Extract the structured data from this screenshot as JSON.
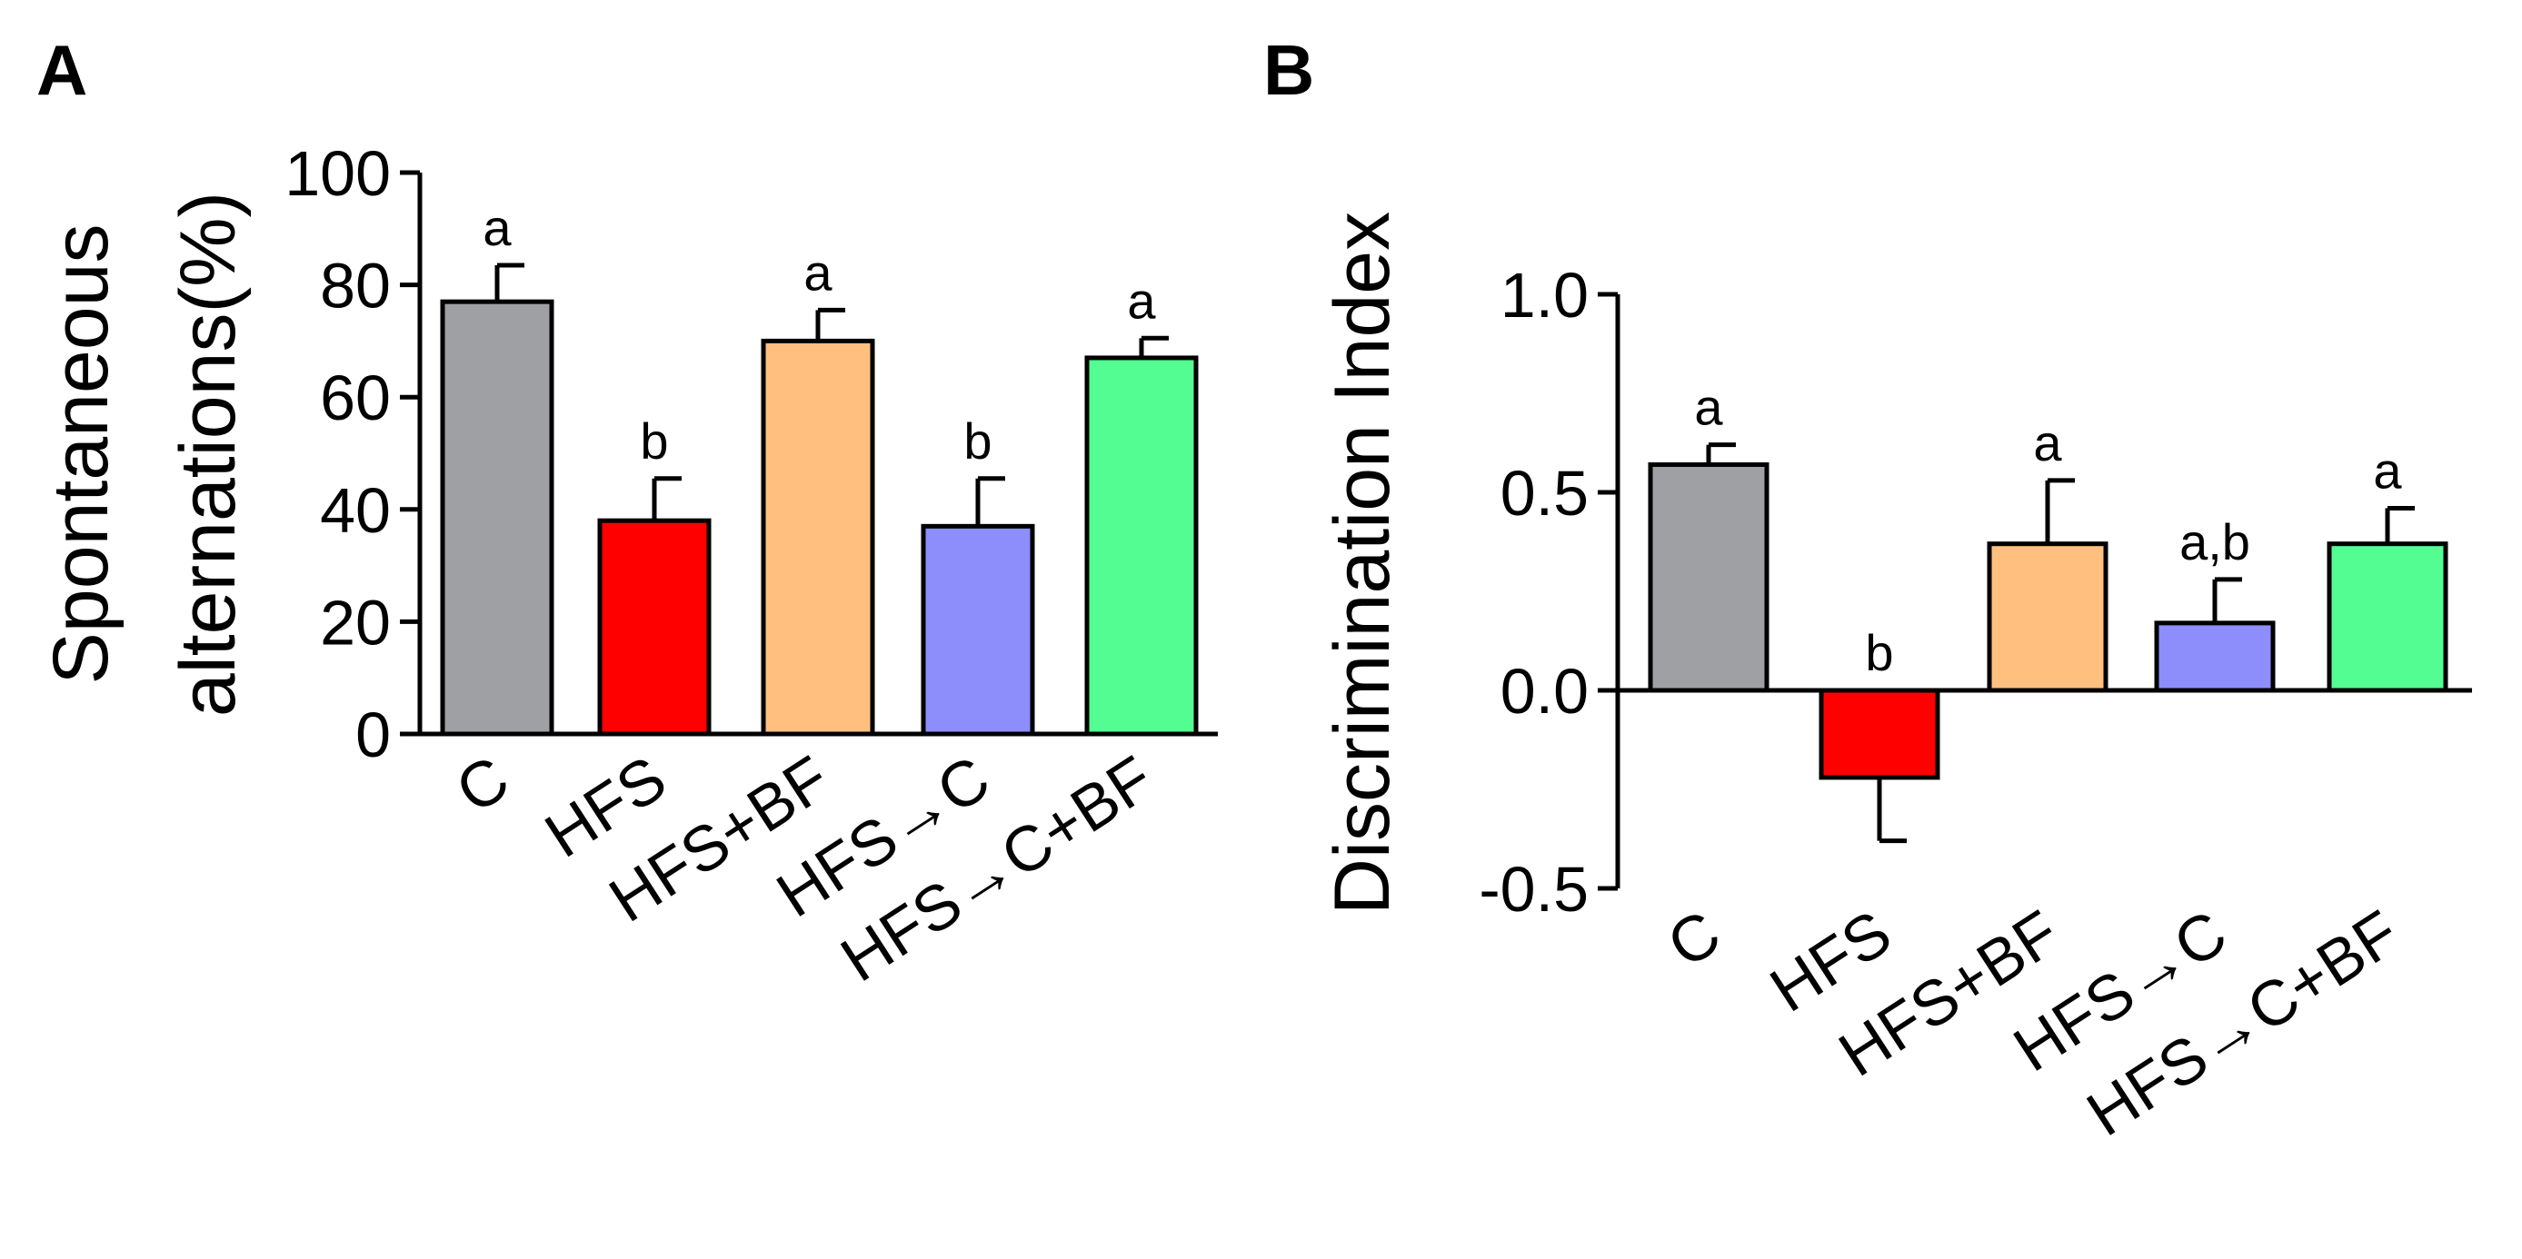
{
  "chart_data": [
    {
      "panel": "A",
      "type": "bar",
      "ylabel": [
        "Spontaneous",
        "alternations(%)"
      ],
      "ylim": [
        0,
        100
      ],
      "yticks": [
        0,
        20,
        40,
        60,
        80,
        100
      ],
      "categories": [
        "C",
        "HFS",
        "HFS+BF",
        "HFS→C",
        "HFS→C+BF"
      ],
      "values": [
        77,
        38,
        70,
        37,
        67
      ],
      "errors": [
        6.5,
        7.5,
        5.5,
        8.5,
        3.5
      ],
      "significance": [
        "a",
        "b",
        "a",
        "b",
        "a"
      ],
      "colors": [
        "#9fa0a4",
        "#ff0000",
        "#ffc07f",
        "#8d8dfc",
        "#54fd92"
      ]
    },
    {
      "panel": "B",
      "type": "bar",
      "ylabel": [
        "Discrimination Index"
      ],
      "ylim": [
        -0.5,
        1.0
      ],
      "yticks": [
        -0.5,
        0.0,
        0.5,
        1.0
      ],
      "ytick_labels": [
        "-0.5",
        "0.0",
        "0.5",
        "1.0"
      ],
      "categories": [
        "C",
        "HFS",
        "HFS+BF",
        "HFS→C",
        "HFS→C+BF"
      ],
      "values": [
        0.57,
        -0.22,
        0.37,
        0.17,
        0.37
      ],
      "errors": [
        0.05,
        0.16,
        0.16,
        0.11,
        0.09
      ],
      "significance": [
        "a",
        "b",
        "a",
        "a,b",
        "a"
      ],
      "colors": [
        "#9fa0a4",
        "#ff0000",
        "#ffc07f",
        "#8d8dfc",
        "#54fd92"
      ]
    }
  ]
}
